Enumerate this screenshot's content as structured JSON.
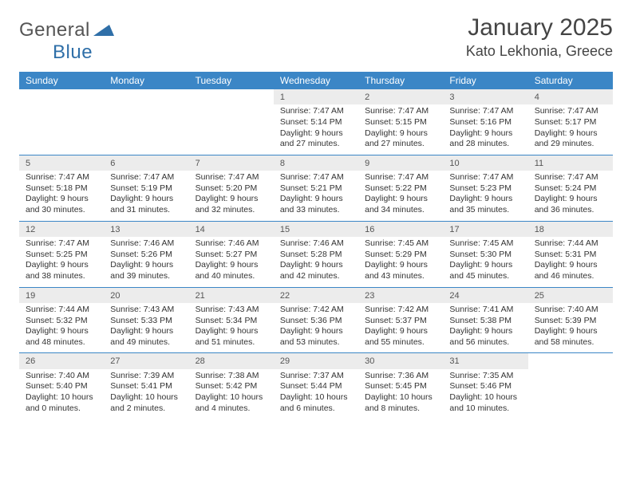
{
  "logo": {
    "word1": "General",
    "word2": "Blue"
  },
  "title": "January 2025",
  "location": "Kato Lekhonia, Greece",
  "colors": {
    "header_bg": "#3b86c6",
    "header_text": "#ffffff",
    "daynum_bg": "#ececec",
    "row_border": "#3b86c6",
    "body_text": "#333333",
    "page_bg": "#ffffff"
  },
  "fonts": {
    "title_size": 30,
    "location_size": 18,
    "dayhead_size": 12,
    "cell_size": 10.5
  },
  "day_headers": [
    "Sunday",
    "Monday",
    "Tuesday",
    "Wednesday",
    "Thursday",
    "Friday",
    "Saturday"
  ],
  "weeks": [
    [
      {
        "n": "",
        "sr": "",
        "ss": "",
        "dl": ""
      },
      {
        "n": "",
        "sr": "",
        "ss": "",
        "dl": ""
      },
      {
        "n": "",
        "sr": "",
        "ss": "",
        "dl": ""
      },
      {
        "n": "1",
        "sr": "Sunrise: 7:47 AM",
        "ss": "Sunset: 5:14 PM",
        "dl": "Daylight: 9 hours and 27 minutes."
      },
      {
        "n": "2",
        "sr": "Sunrise: 7:47 AM",
        "ss": "Sunset: 5:15 PM",
        "dl": "Daylight: 9 hours and 27 minutes."
      },
      {
        "n": "3",
        "sr": "Sunrise: 7:47 AM",
        "ss": "Sunset: 5:16 PM",
        "dl": "Daylight: 9 hours and 28 minutes."
      },
      {
        "n": "4",
        "sr": "Sunrise: 7:47 AM",
        "ss": "Sunset: 5:17 PM",
        "dl": "Daylight: 9 hours and 29 minutes."
      }
    ],
    [
      {
        "n": "5",
        "sr": "Sunrise: 7:47 AM",
        "ss": "Sunset: 5:18 PM",
        "dl": "Daylight: 9 hours and 30 minutes."
      },
      {
        "n": "6",
        "sr": "Sunrise: 7:47 AM",
        "ss": "Sunset: 5:19 PM",
        "dl": "Daylight: 9 hours and 31 minutes."
      },
      {
        "n": "7",
        "sr": "Sunrise: 7:47 AM",
        "ss": "Sunset: 5:20 PM",
        "dl": "Daylight: 9 hours and 32 minutes."
      },
      {
        "n": "8",
        "sr": "Sunrise: 7:47 AM",
        "ss": "Sunset: 5:21 PM",
        "dl": "Daylight: 9 hours and 33 minutes."
      },
      {
        "n": "9",
        "sr": "Sunrise: 7:47 AM",
        "ss": "Sunset: 5:22 PM",
        "dl": "Daylight: 9 hours and 34 minutes."
      },
      {
        "n": "10",
        "sr": "Sunrise: 7:47 AM",
        "ss": "Sunset: 5:23 PM",
        "dl": "Daylight: 9 hours and 35 minutes."
      },
      {
        "n": "11",
        "sr": "Sunrise: 7:47 AM",
        "ss": "Sunset: 5:24 PM",
        "dl": "Daylight: 9 hours and 36 minutes."
      }
    ],
    [
      {
        "n": "12",
        "sr": "Sunrise: 7:47 AM",
        "ss": "Sunset: 5:25 PM",
        "dl": "Daylight: 9 hours and 38 minutes."
      },
      {
        "n": "13",
        "sr": "Sunrise: 7:46 AM",
        "ss": "Sunset: 5:26 PM",
        "dl": "Daylight: 9 hours and 39 minutes."
      },
      {
        "n": "14",
        "sr": "Sunrise: 7:46 AM",
        "ss": "Sunset: 5:27 PM",
        "dl": "Daylight: 9 hours and 40 minutes."
      },
      {
        "n": "15",
        "sr": "Sunrise: 7:46 AM",
        "ss": "Sunset: 5:28 PM",
        "dl": "Daylight: 9 hours and 42 minutes."
      },
      {
        "n": "16",
        "sr": "Sunrise: 7:45 AM",
        "ss": "Sunset: 5:29 PM",
        "dl": "Daylight: 9 hours and 43 minutes."
      },
      {
        "n": "17",
        "sr": "Sunrise: 7:45 AM",
        "ss": "Sunset: 5:30 PM",
        "dl": "Daylight: 9 hours and 45 minutes."
      },
      {
        "n": "18",
        "sr": "Sunrise: 7:44 AM",
        "ss": "Sunset: 5:31 PM",
        "dl": "Daylight: 9 hours and 46 minutes."
      }
    ],
    [
      {
        "n": "19",
        "sr": "Sunrise: 7:44 AM",
        "ss": "Sunset: 5:32 PM",
        "dl": "Daylight: 9 hours and 48 minutes."
      },
      {
        "n": "20",
        "sr": "Sunrise: 7:43 AM",
        "ss": "Sunset: 5:33 PM",
        "dl": "Daylight: 9 hours and 49 minutes."
      },
      {
        "n": "21",
        "sr": "Sunrise: 7:43 AM",
        "ss": "Sunset: 5:34 PM",
        "dl": "Daylight: 9 hours and 51 minutes."
      },
      {
        "n": "22",
        "sr": "Sunrise: 7:42 AM",
        "ss": "Sunset: 5:36 PM",
        "dl": "Daylight: 9 hours and 53 minutes."
      },
      {
        "n": "23",
        "sr": "Sunrise: 7:42 AM",
        "ss": "Sunset: 5:37 PM",
        "dl": "Daylight: 9 hours and 55 minutes."
      },
      {
        "n": "24",
        "sr": "Sunrise: 7:41 AM",
        "ss": "Sunset: 5:38 PM",
        "dl": "Daylight: 9 hours and 56 minutes."
      },
      {
        "n": "25",
        "sr": "Sunrise: 7:40 AM",
        "ss": "Sunset: 5:39 PM",
        "dl": "Daylight: 9 hours and 58 minutes."
      }
    ],
    [
      {
        "n": "26",
        "sr": "Sunrise: 7:40 AM",
        "ss": "Sunset: 5:40 PM",
        "dl": "Daylight: 10 hours and 0 minutes."
      },
      {
        "n": "27",
        "sr": "Sunrise: 7:39 AM",
        "ss": "Sunset: 5:41 PM",
        "dl": "Daylight: 10 hours and 2 minutes."
      },
      {
        "n": "28",
        "sr": "Sunrise: 7:38 AM",
        "ss": "Sunset: 5:42 PM",
        "dl": "Daylight: 10 hours and 4 minutes."
      },
      {
        "n": "29",
        "sr": "Sunrise: 7:37 AM",
        "ss": "Sunset: 5:44 PM",
        "dl": "Daylight: 10 hours and 6 minutes."
      },
      {
        "n": "30",
        "sr": "Sunrise: 7:36 AM",
        "ss": "Sunset: 5:45 PM",
        "dl": "Daylight: 10 hours and 8 minutes."
      },
      {
        "n": "31",
        "sr": "Sunrise: 7:35 AM",
        "ss": "Sunset: 5:46 PM",
        "dl": "Daylight: 10 hours and 10 minutes."
      },
      {
        "n": "",
        "sr": "",
        "ss": "",
        "dl": ""
      }
    ]
  ]
}
